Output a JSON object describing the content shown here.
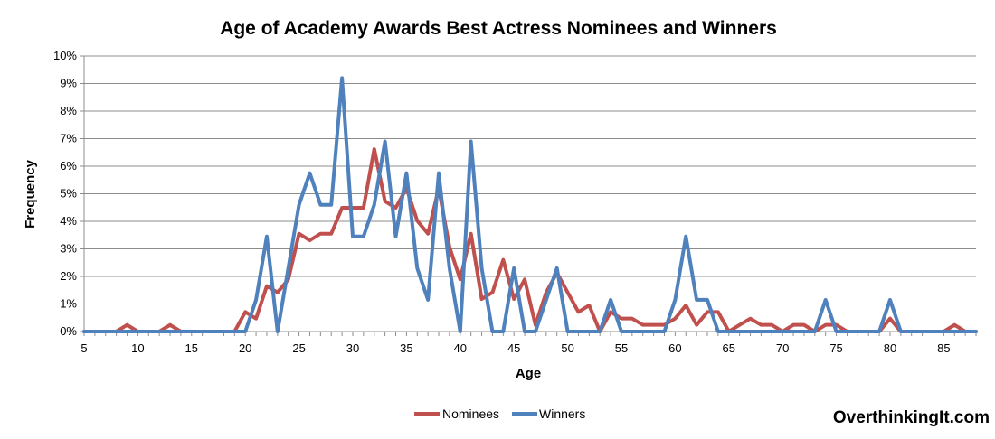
{
  "chart_data": {
    "type": "line",
    "title": "Age of Academy Awards Best Actress Nominees and Winners",
    "xlabel": "Age",
    "ylabel": "Frequency",
    "xlim": [
      5,
      88
    ],
    "ylim": [
      0,
      0.1
    ],
    "x_ticks": [
      5,
      10,
      15,
      20,
      25,
      30,
      35,
      40,
      45,
      50,
      55,
      60,
      65,
      70,
      75,
      80,
      85
    ],
    "x_tick_labels": [
      "5",
      "10",
      "15",
      "20",
      "25",
      "30",
      "35",
      "40",
      "45",
      "50",
      "55",
      "60",
      "65",
      "70",
      "75",
      "80",
      "85"
    ],
    "y_ticks": [
      0,
      0.01,
      0.02,
      0.03,
      0.04,
      0.05,
      0.06,
      0.07,
      0.08,
      0.09,
      0.1
    ],
    "y_tick_labels": [
      "0%",
      "1%",
      "2%",
      "3%",
      "4%",
      "5%",
      "6%",
      "7%",
      "8%",
      "9%",
      "10%"
    ],
    "grid": "horizontal",
    "legend_position": "bottom",
    "x": [
      5,
      6,
      7,
      8,
      9,
      10,
      11,
      12,
      13,
      14,
      15,
      16,
      17,
      18,
      19,
      20,
      21,
      22,
      23,
      24,
      25,
      26,
      27,
      28,
      29,
      30,
      31,
      32,
      33,
      34,
      35,
      36,
      37,
      38,
      39,
      40,
      41,
      42,
      43,
      44,
      45,
      46,
      47,
      48,
      49,
      50,
      51,
      52,
      53,
      54,
      55,
      56,
      57,
      58,
      59,
      60,
      61,
      62,
      63,
      64,
      65,
      66,
      67,
      68,
      69,
      70,
      71,
      72,
      73,
      74,
      75,
      76,
      77,
      78,
      79,
      80,
      81,
      82,
      83,
      84,
      85,
      86,
      87,
      88
    ],
    "series": [
      {
        "name": "Nominees",
        "color": "#c0504d",
        "values": [
          0,
          0,
          0,
          0,
          0.0024,
          0,
          0,
          0,
          0.0024,
          0,
          0,
          0,
          0,
          0,
          0,
          0.0071,
          0.0047,
          0.0165,
          0.0142,
          0.0189,
          0.0355,
          0.0331,
          0.0355,
          0.0355,
          0.0449,
          0.0449,
          0.0449,
          0.0662,
          0.0473,
          0.0449,
          0.052,
          0.0402,
          0.0355,
          0.052,
          0.0307,
          0.0189,
          0.0355,
          0.0118,
          0.0142,
          0.026,
          0.0118,
          0.0189,
          0.0024,
          0.0142,
          0.0213,
          0.0142,
          0.0071,
          0.0095,
          0,
          0.0071,
          0.0047,
          0.0047,
          0.0024,
          0.0024,
          0.0024,
          0.0047,
          0.0095,
          0.0024,
          0.0071,
          0.0071,
          0,
          0.0024,
          0.0047,
          0.0024,
          0.0024,
          0,
          0.0024,
          0.0024,
          0,
          0.0024,
          0.0024,
          0,
          0,
          0,
          0,
          0.0047,
          0,
          0,
          0,
          0,
          0,
          0.0024,
          0,
          0
        ]
      },
      {
        "name": "Winners",
        "color": "#4f81bd",
        "values": [
          0,
          0,
          0,
          0,
          0,
          0,
          0,
          0,
          0,
          0,
          0,
          0,
          0,
          0,
          0,
          0,
          0.0115,
          0.0345,
          0,
          0.023,
          0.046,
          0.0575,
          0.046,
          0.046,
          0.092,
          0.0345,
          0.0345,
          0.046,
          0.069,
          0.0345,
          0.0575,
          0.023,
          0.0115,
          0.0575,
          0.023,
          0,
          0.069,
          0.023,
          0,
          0,
          0.023,
          0,
          0,
          0.0115,
          0.023,
          0,
          0,
          0,
          0,
          0.0115,
          0,
          0,
          0,
          0,
          0,
          0.0115,
          0.0345,
          0.0115,
          0.0115,
          0,
          0,
          0,
          0,
          0,
          0,
          0,
          0,
          0,
          0,
          0.0115,
          0,
          0,
          0,
          0,
          0,
          0.0115,
          0,
          0,
          0,
          0,
          0,
          0,
          0,
          0
        ]
      }
    ]
  },
  "watermark": "OverthinkingIt.com"
}
